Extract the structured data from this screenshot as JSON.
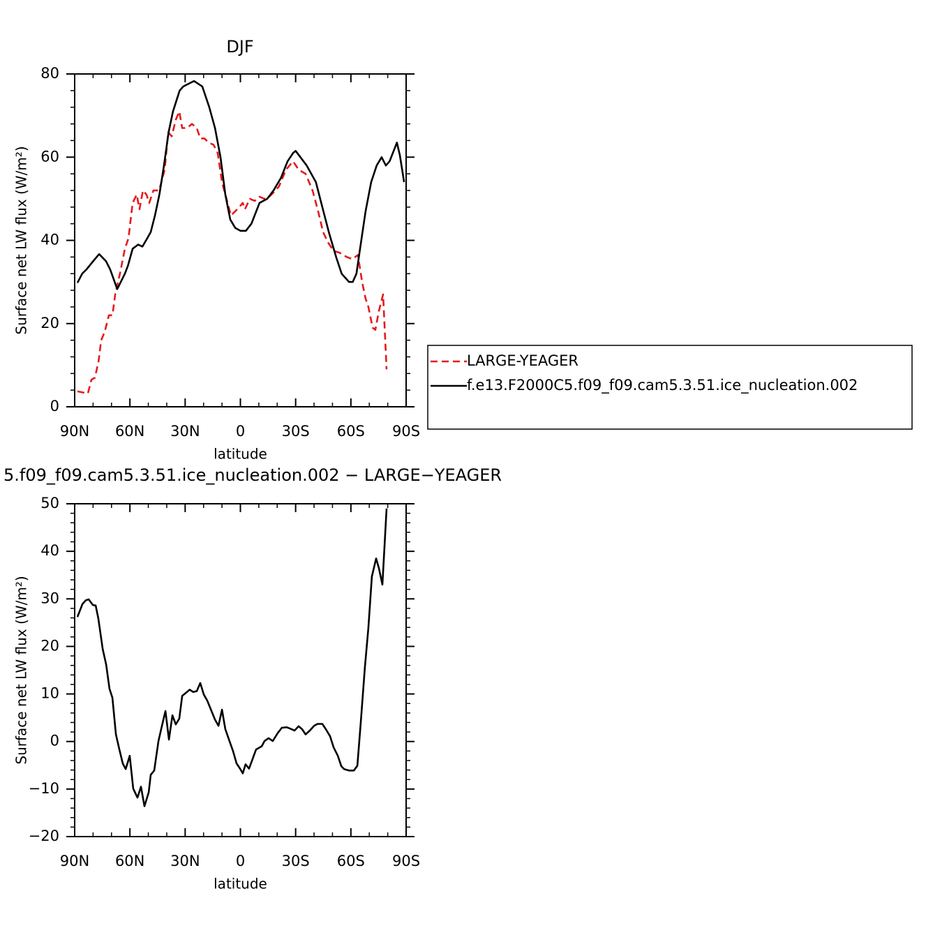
{
  "chart_data": [
    {
      "type": "line",
      "title": "DJF",
      "xlabel": "latitude",
      "ylabel": "Surface net LW flux (W/m²)",
      "xlim": [
        90,
        -90
      ],
      "ylim": [
        0,
        80
      ],
      "xticks": [
        {
          "value": 90,
          "label": "90N"
        },
        {
          "value": 60,
          "label": "60N"
        },
        {
          "value": 30,
          "label": "30N"
        },
        0,
        {
          "value": -30,
          "label": "30S"
        },
        {
          "value": -60,
          "label": "60S"
        },
        {
          "value": -90,
          "label": "90S"
        }
      ],
      "xminorticks": [
        80,
        70,
        50,
        40,
        20,
        10,
        -10,
        -20,
        -40,
        -50,
        -70,
        -80
      ],
      "yticks": [
        0,
        20,
        40,
        60,
        80
      ],
      "yminorticks": [
        4,
        8,
        12,
        16,
        24,
        28,
        32,
        36,
        44,
        48,
        52,
        56,
        64,
        68,
        72,
        76
      ],
      "legend": "right",
      "series": [
        {
          "name": "LARGE-YEAGER",
          "color": "#e41a1c",
          "dash": true,
          "x": [
            88.5,
            82.8,
            80.9,
            79,
            77,
            75.6,
            73.7,
            71.4,
            69.5,
            68,
            65.4,
            62.7,
            60.8,
            58.5,
            56.3,
            54.8,
            52.9,
            51,
            49.5,
            47.2,
            44.1,
            41.1,
            39.2,
            37.3,
            35.1,
            33.2,
            31.6,
            29,
            26.3,
            23.7,
            21.8,
            19.5,
            17.2,
            14.6,
            12.3,
            10,
            8.2,
            5.1,
            2.8,
            0.6,
            -1.3,
            -2.5,
            -5.1,
            -7.8,
            -10.4,
            -13,
            -15.7,
            -19.1,
            -21,
            -24.8,
            -28.6,
            -31.6,
            -35.4,
            -39.2,
            -42.2,
            -44.9,
            -47.6,
            -50.6,
            -54,
            -57.8,
            -60.8,
            -63.8,
            -66.1,
            -68,
            -69.5,
            -71.8,
            -73.3,
            -75.2,
            -77.5,
            -79.4
          ],
          "values": [
            3.7,
            3.2,
            6.5,
            7,
            11,
            16,
            18,
            22,
            22,
            27,
            32,
            38,
            40.5,
            49,
            51,
            47.5,
            52,
            51,
            49,
            52,
            52,
            57,
            66,
            65,
            69,
            71,
            67,
            67,
            68,
            67,
            64.5,
            64.5,
            63.5,
            63,
            61,
            54,
            51,
            46,
            47,
            48,
            49,
            47.5,
            50,
            49.5,
            50.5,
            50,
            50.5,
            52,
            53,
            57,
            59,
            57,
            56,
            52,
            47,
            42,
            39.5,
            37.5,
            37,
            36,
            35.5,
            36.5,
            30,
            26,
            24,
            19,
            18.5,
            23,
            27,
            9
          ]
        },
        {
          "name": "f.e13.F2000C5.f09_f09.cam5.3.51.ice_nucleation.002",
          "color": "#000000",
          "dash": false,
          "x": [
            88.5,
            85.9,
            83.6,
            79.4,
            76.7,
            73,
            70.7,
            66.9,
            62.7,
            61,
            58.5,
            55.5,
            53.2,
            50.6,
            48.7,
            46.4,
            44,
            41.5,
            39,
            36.6,
            33,
            31,
            25.2,
            20.7,
            16.9,
            13.8,
            10.8,
            8.2,
            5.5,
            2.8,
            0,
            -3,
            -6,
            -10.4,
            -14.6,
            -18,
            -22,
            -25.6,
            -28.6,
            -30,
            -36,
            -41,
            -44.5,
            -48,
            -52,
            -55,
            -59,
            -61,
            -63,
            -65,
            -68,
            -71,
            -74,
            -76.7,
            -79,
            -81,
            -85,
            -86.6,
            -88.9
          ],
          "values": [
            29.8,
            32,
            33,
            35.3,
            36.7,
            35,
            33,
            28.3,
            32,
            34,
            38,
            39,
            38.5,
            40.5,
            42,
            46,
            51,
            58,
            66,
            71,
            76,
            77,
            78.3,
            77,
            72,
            67,
            60,
            51,
            45,
            43,
            42.3,
            42.3,
            44,
            49,
            50,
            52,
            55,
            59,
            61,
            61.5,
            58,
            54,
            48,
            42,
            36,
            32,
            30,
            30,
            32,
            38,
            47,
            54,
            58,
            60,
            58,
            59,
            63.5,
            60.5,
            54
          ]
        }
      ]
    },
    {
      "type": "line",
      "title": "5.f09_f09.cam5.3.51.ice_nucleation.002 − LARGE−YEAGER",
      "xlabel": "latitude",
      "ylabel": "Surface net LW flux (W/m²)",
      "xlim": [
        90,
        -90
      ],
      "ylim": [
        -20,
        50
      ],
      "xticks": [
        {
          "value": 90,
          "label": "90N"
        },
        {
          "value": 60,
          "label": "60N"
        },
        {
          "value": 30,
          "label": "30N"
        },
        0,
        {
          "value": -30,
          "label": "30S"
        },
        {
          "value": -60,
          "label": "60S"
        },
        {
          "value": -90,
          "label": "90S"
        }
      ],
      "xminorticks": [
        80,
        70,
        50,
        40,
        20,
        10,
        -10,
        -20,
        -40,
        -50,
        -70,
        -80
      ],
      "yticks": [
        {
          "value": -20,
          "label": "−20"
        },
        {
          "value": -10,
          "label": "−10"
        },
        0,
        10,
        20,
        30,
        40,
        50
      ],
      "yminorticks": [
        -18,
        -16,
        -14,
        -12,
        -8,
        -6,
        -4,
        -2,
        2,
        4,
        6,
        8,
        12,
        14,
        16,
        18,
        22,
        24,
        26,
        28,
        32,
        34,
        36,
        38,
        42,
        44,
        46,
        48
      ],
      "series": [
        {
          "color": "#000000",
          "dash": false,
          "x": [
            88.5,
            85.8,
            83.9,
            82.4,
            80.1,
            78.6,
            77.1,
            74.8,
            72.9,
            71.1,
            69.5,
            67.6,
            65.7,
            63.9,
            62.3,
            60.1,
            58.2,
            55.9,
            54,
            52.1,
            49.8,
            48.7,
            46.8,
            44.5,
            42.6,
            40.7,
            38.8,
            36.9,
            35.1,
            33.2,
            31.6,
            29.7,
            27.5,
            25.6,
            23.7,
            21.8,
            19.9,
            18,
            16.1,
            13.8,
            11.9,
            10,
            8.2,
            6.3,
            4,
            2.1,
            0.2,
            -1.3,
            -2.8,
            -4.7,
            -6.6,
            -8.5,
            -11.6,
            -13.1,
            -15.3,
            -17.6,
            -20.3,
            -22.5,
            -25.2,
            -27.1,
            -29.4,
            -31.6,
            -33.5,
            -35.4,
            -37.7,
            -40,
            -41.9,
            -44.5,
            -46.4,
            -48.7,
            -50.6,
            -52.9,
            -54.8,
            -56.3,
            -58.9,
            -61.6,
            -63.5,
            -65.4,
            -67.6,
            -69.5,
            -71.4,
            -73.7,
            -75.2,
            -77.1,
            -79.4
          ],
          "values": [
            26.2,
            28.9,
            29.7,
            29.9,
            28.7,
            28.6,
            25.8,
            19.5,
            16.2,
            11.1,
            9.2,
            1.5,
            -1.7,
            -4.6,
            -5.8,
            -3,
            -9.9,
            -11.8,
            -9.5,
            -13.6,
            -10.7,
            -7,
            -6.1,
            0.1,
            3.3,
            6.4,
            0.4,
            5.5,
            3.6,
            4.8,
            9.6,
            10.2,
            10.9,
            10.4,
            10.6,
            12.3,
            9.9,
            8.6,
            6.8,
            4.6,
            3.3,
            6.7,
            2.6,
            0.5,
            -2,
            -4.6,
            -5.7,
            -6.7,
            -4.8,
            -5.7,
            -3.7,
            -1.7,
            -1,
            0.1,
            0.7,
            0.1,
            1.8,
            2.9,
            3,
            2.7,
            2.3,
            3.2,
            2.6,
            1.5,
            2.3,
            3.3,
            3.7,
            3.7,
            2.6,
            1.1,
            -1.2,
            -3,
            -5.2,
            -5.8,
            -6.1,
            -6.1,
            -5.1,
            4.2,
            15.6,
            23.9,
            34.7,
            38.5,
            36.5,
            33,
            49
          ]
        }
      ]
    }
  ]
}
